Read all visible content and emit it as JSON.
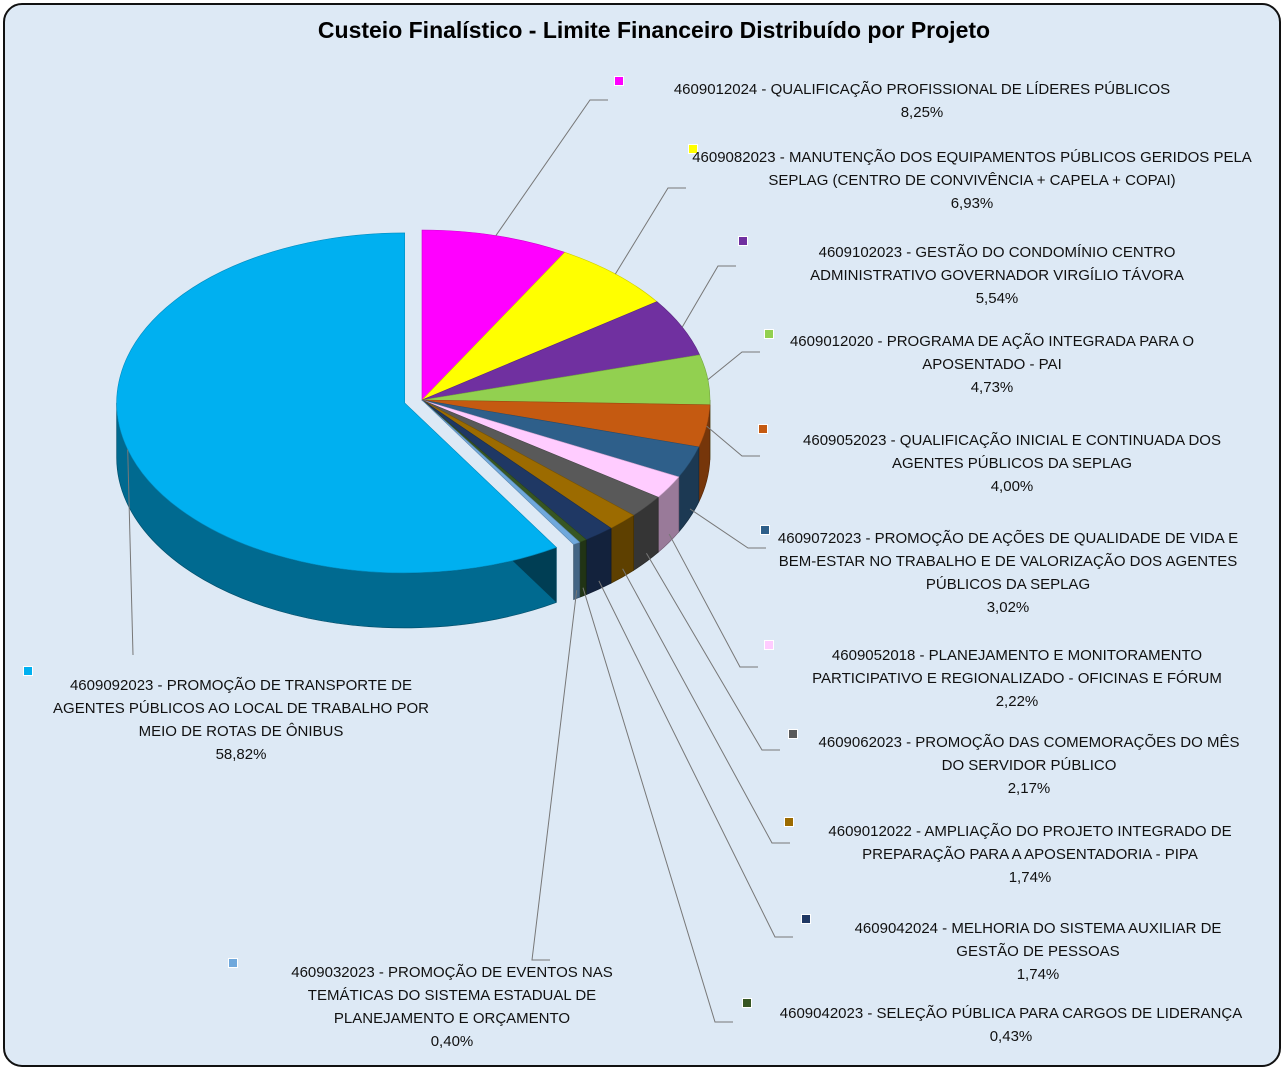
{
  "chart_data": {
    "type": "pie",
    "title": "Custeio Finalístico - Limite Financeiro Distribuído por Projeto",
    "categories": [
      "4609012024 - QUALIFICAÇÃO PROFISSIONAL DE LÍDERES PÚBLICOS",
      "4609082023 - MANUTENÇÃO DOS EQUIPAMENTOS PÚBLICOS GERIDOS PELA SEPLAG (CENTRO DE CONVIVÊNCIA + CAPELA + COPAI)",
      "4609102023 - GESTÃO DO CONDOMÍNIO CENTRO ADMINISTRATIVO GOVERNADOR VIRGÍLIO TÁVORA",
      "4609012020 - PROGRAMA DE AÇÃO INTEGRADA PARA O APOSENTADO - PAI",
      "4609052023 - QUALIFICAÇÃO INICIAL E CONTINUADA DOS AGENTES PÚBLICOS DA SEPLAG",
      "4609072023 - PROMOÇÃO DE AÇÕES DE QUALIDADE DE VIDA E BEM-ESTAR NO TRABALHO E DE VALORIZAÇÃO DOS AGENTES PÚBLICOS DA SEPLAG",
      "4609052018 - PLANEJAMENTO E MONITORAMENTO PARTICIPATIVO E REGIONALIZADO - OFICINAS E FÓRUM",
      "4609062023 - PROMOÇÃO DAS COMEMORAÇÕES DO MÊS DO SERVIDOR PÚBLICO",
      "4609012022 - AMPLIAÇÃO DO PROJETO INTEGRADO DE PREPARAÇÃO PARA A APOSENTADORIA - PIPA",
      "4609042024 - MELHORIA DO SISTEMA AUXILIAR DE GESTÃO DE PESSOAS",
      "4609042023 - SELEÇÃO PÚBLICA PARA CARGOS DE LIDERANÇA",
      "4609032023 - PROMOÇÃO DE EVENTOS NAS TEMÁTICAS DO SISTEMA ESTADUAL DE PLANEJAMENTO E ORÇAMENTO",
      "4609092023 - PROMOÇÃO DE TRANSPORTE DE AGENTES PÚBLICOS AO LOCAL DE TRABALHO POR MEIO DE ROTAS DE ÔNIBUS"
    ],
    "values": [
      8.25,
      6.93,
      5.54,
      4.73,
      4.0,
      3.02,
      2.22,
      2.17,
      1.74,
      1.74,
      0.43,
      0.4,
      58.82
    ],
    "value_labels": [
      "8,25%",
      "6,93%",
      "5,54%",
      "4,73%",
      "4,00%",
      "3,02%",
      "2,22%",
      "2,17%",
      "1,74%",
      "1,74%",
      "0,43%",
      "0,40%",
      "58,82%"
    ],
    "colors": [
      "#ff00ff",
      "#ffff00",
      "#7030a0",
      "#92d050",
      "#c55a11",
      "#2e5f8a",
      "#ffccff",
      "#595959",
      "#9c6b00",
      "#1f3864",
      "#375623",
      "#6fa8dc",
      "#00b0f0"
    ]
  }
}
